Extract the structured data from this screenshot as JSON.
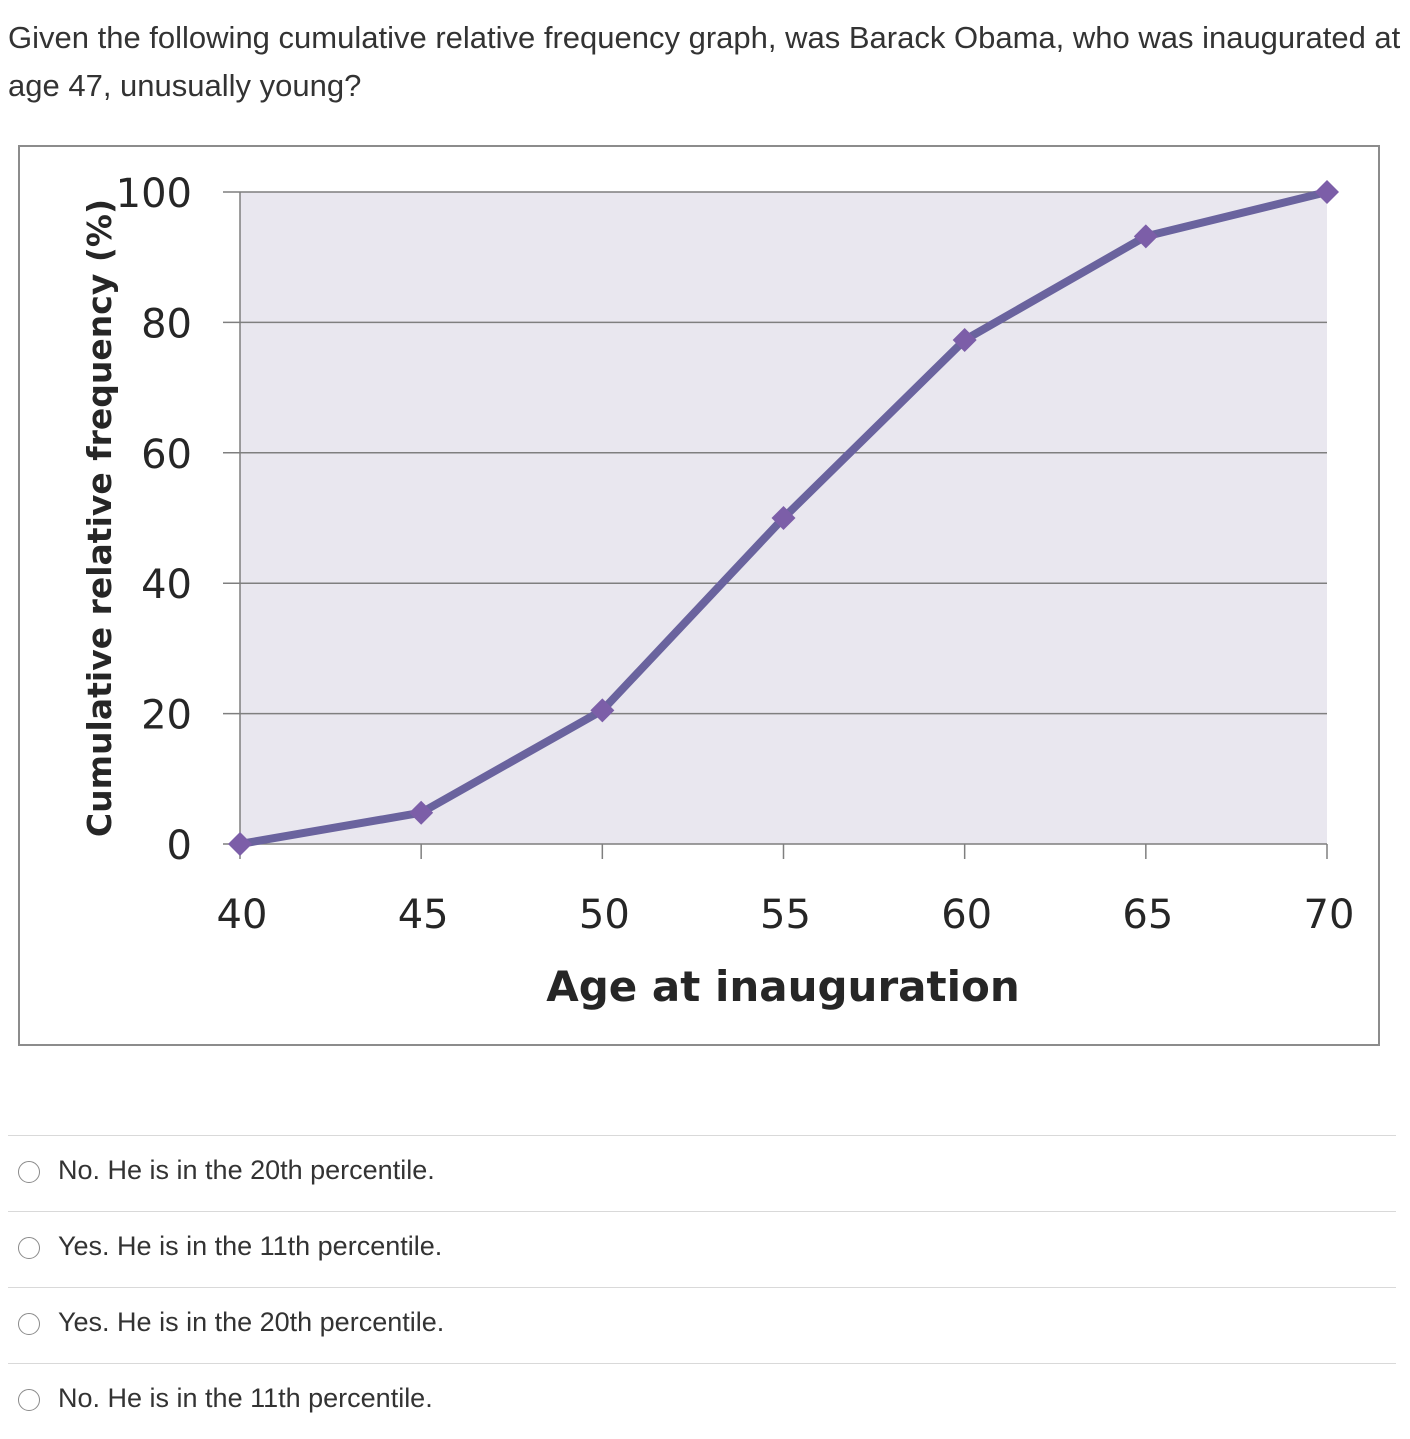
{
  "question": {
    "text": "Given the following cumulative relative frequency graph, was Barack Obama, who was inaugurated at age 47, unusually young?"
  },
  "chart_data": {
    "type": "line",
    "title": "",
    "xlabel": "Age at inauguration",
    "ylabel": "Cumulative relative frequency (%)",
    "x": [
      40,
      45,
      50,
      55,
      60,
      65,
      70
    ],
    "series": [
      {
        "name": "Cumulative relative frequency",
        "values": [
          0,
          4.8,
          20.5,
          50,
          77.3,
          93.2,
          100
        ]
      }
    ],
    "xlim": [
      40,
      70
    ],
    "ylim": [
      0,
      100
    ],
    "xticks": [
      40,
      45,
      50,
      55,
      60,
      65,
      70
    ],
    "yticks": [
      0,
      20,
      40,
      60,
      80,
      100
    ],
    "grid": true,
    "line_color": "#6a639e",
    "marker_color": "#7c5ea8",
    "plot_background": "#e9e7ef",
    "marker": "diamond"
  },
  "answers": [
    {
      "label": "No. He is in the 20th percentile."
    },
    {
      "label": "Yes. He is in the 11th percentile."
    },
    {
      "label": "Yes. He is in the 20th percentile."
    },
    {
      "label": "No. He is in the 11th percentile."
    }
  ]
}
